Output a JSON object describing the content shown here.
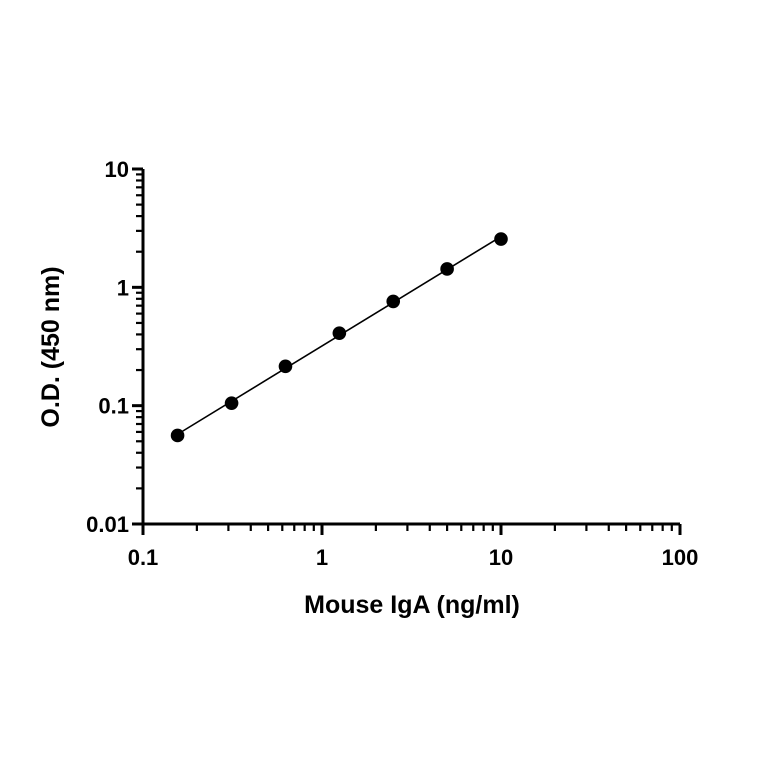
{
  "chart_data": {
    "type": "scatter",
    "title": "",
    "xlabel": "Mouse IgA (ng/ml)",
    "ylabel": "O.D. (450 nm)",
    "x_scale": "log",
    "y_scale": "log",
    "xlim": [
      0.1,
      100
    ],
    "ylim": [
      0.01,
      10
    ],
    "x_ticks": [
      "0.1",
      "1",
      "10",
      "100"
    ],
    "y_ticks": [
      "0.01",
      "0.1",
      "1",
      "10"
    ],
    "grid": false,
    "legend": "none",
    "series": [
      {
        "x": [
          0.156,
          0.3125,
          0.625,
          1.25,
          2.5,
          5,
          10
        ],
        "y": [
          0.056,
          0.105,
          0.215,
          0.41,
          0.76,
          1.43,
          2.56
        ],
        "marker": "circle",
        "color": "#000000",
        "fit_line": true
      }
    ]
  }
}
